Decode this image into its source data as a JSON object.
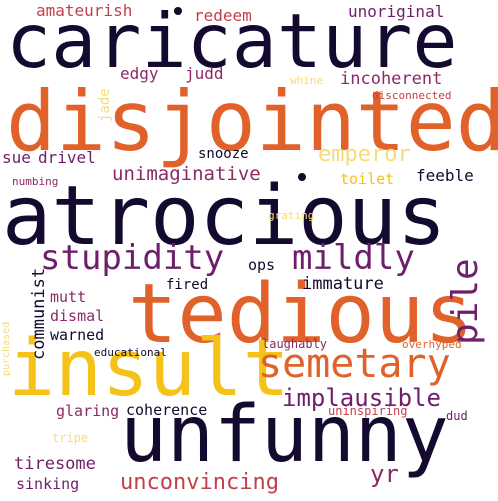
{
  "colors": {
    "background": "#ffffff",
    "navy": "#14092e",
    "orange": "#e0622a",
    "yellow": "#f4c219",
    "light_yellow": "#f5dc78",
    "purple": "#6e1f6b",
    "magenta": "#8d2a63",
    "red": "#c2404a"
  },
  "words": [
    "caricature",
    "disjointed",
    "atrocious",
    "tedious",
    "insult",
    "unfunny",
    "semetary",
    "stupidity",
    "mildly",
    "pile",
    "implausible",
    "unconvincing",
    "emperor",
    "unimaginative",
    "incoherent",
    "amateurish",
    "redeem",
    "unoriginal",
    "edgy",
    "judd",
    "jade",
    "whine",
    "disconnected",
    "sue",
    "drivel",
    "snooze",
    "toilet",
    "feeble",
    "numbing",
    "grating",
    "ops",
    "communist",
    "fired",
    "immature",
    "mutt",
    "dismal",
    "warned",
    "purchased",
    "educational",
    "laughably",
    "overhyped",
    "glaring",
    "coherence",
    "uninspiring",
    "dud",
    "tripe",
    "tiresome",
    "yr",
    "sinking"
  ]
}
